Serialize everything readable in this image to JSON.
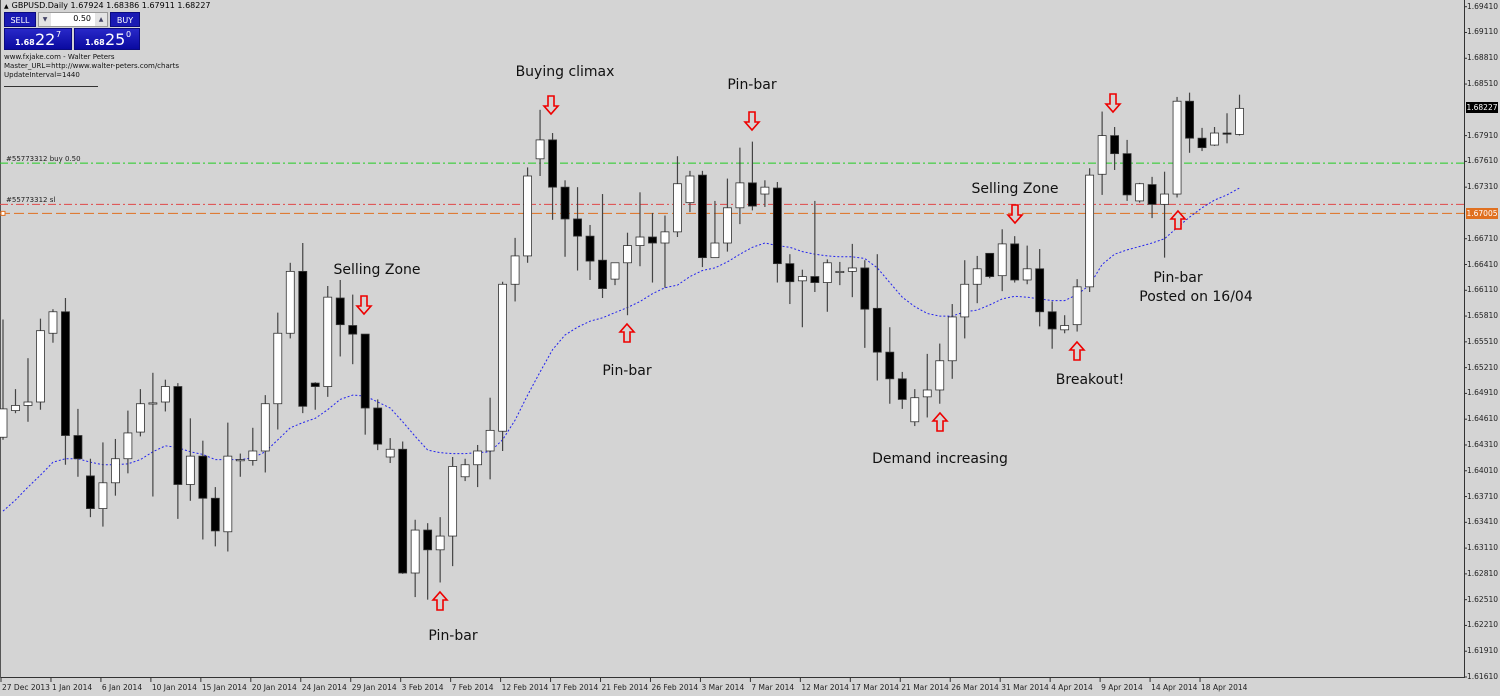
{
  "header": {
    "symbol_line": "GBPUSD.Daily  1.67924 1.68386 1.67911 1.68227"
  },
  "trade_panel": {
    "sell_label": "SELL",
    "buy_label": "BUY",
    "lot_value": "0.50",
    "sell_price": {
      "small": "1.68",
      "big": "22",
      "pip": "7"
    },
    "buy_price": {
      "small": "1.68",
      "big": "25",
      "pip": "0"
    }
  },
  "info_lines": [
    "www.fxjake.com - Walter Peters",
    "Master_URL=http://www.walter-peters.com/charts",
    "UpdateInterval=1440"
  ],
  "levels": {
    "buy_label": "#55773312 buy 0.50",
    "sl_label": "#55773312 sl",
    "current_price_tag": "1.68227",
    "orange_tag": "1.67005"
  },
  "colors": {
    "background": "#d4d4d4",
    "bull_body": "#ffffff",
    "bear_body": "#000000",
    "ma_line": "#2222ee",
    "buy_line": "#22cc22",
    "sl_line": "#e04848",
    "orange_line": "#e07020",
    "annotation_arrow": "#ee0000"
  },
  "annotations": {
    "buying_climax": "Buying climax",
    "pinbar_top": "Pin-bar",
    "selling_zone_1": "Selling Zone",
    "pinbar_mid": "Pin-bar",
    "pinbar_low": "Pin-bar",
    "demand_increasing": "Demand increasing",
    "selling_zone_2": "Selling Zone",
    "breakout": "Breakout!",
    "pinbar_last": "Pin-bar",
    "posted": "Posted on 16/04"
  },
  "chart_data": {
    "type": "candlestick",
    "symbol": "GBPUSD",
    "timeframe": "Daily",
    "ohlc_order": [
      "open",
      "high",
      "low",
      "close"
    ],
    "ylim": [
      1.6161,
      1.6941
    ],
    "y_ticks": [
      "1.69410",
      "1.69110",
      "1.68810",
      "1.68510",
      "1.68227",
      "1.67910",
      "1.67610",
      "1.67310",
      "1.67005",
      "1.66710",
      "1.66410",
      "1.66110",
      "1.65810",
      "1.65510",
      "1.65210",
      "1.64910",
      "1.64610",
      "1.64310",
      "1.64010",
      "1.63710",
      "1.63410",
      "1.63110",
      "1.62810",
      "1.62510",
      "1.62210",
      "1.61910",
      "1.61610"
    ],
    "x_labels": [
      "27 Dec 2013",
      "1 Jan 2014",
      "6 Jan 2014",
      "10 Jan 2014",
      "15 Jan 2014",
      "20 Jan 2014",
      "24 Jan 2014",
      "29 Jan 2014",
      "3 Feb 2014",
      "7 Feb 2014",
      "12 Feb 2014",
      "17 Feb 2014",
      "21 Feb 2014",
      "26 Feb 2014",
      "3 Mar 2014",
      "7 Mar 2014",
      "12 Mar 2014",
      "17 Mar 2014",
      "21 Mar 2014",
      "26 Mar 2014",
      "31 Mar 2014",
      "4 Apr 2014",
      "9 Apr 2014",
      "14 Apr 2014",
      "18 Apr 2014"
    ],
    "bars_per_label": 4,
    "horizontal_levels": {
      "buy": 1.6759,
      "sl": 1.6711,
      "orange": 1.67005,
      "bid": 1.68227
    },
    "candles": [
      [
        1.644,
        1.6577,
        1.6437,
        1.6473
      ],
      [
        1.6471,
        1.6496,
        1.6468,
        1.6477
      ],
      [
        1.6477,
        1.6532,
        1.6458,
        1.6481
      ],
      [
        1.6481,
        1.6578,
        1.6472,
        1.6564
      ],
      [
        1.6561,
        1.6589,
        1.655,
        1.6586
      ],
      [
        1.6586,
        1.6602,
        1.6408,
        1.6442
      ],
      [
        1.6442,
        1.6473,
        1.6394,
        1.6415
      ],
      [
        1.6395,
        1.6415,
        1.6347,
        1.6357
      ],
      [
        1.6357,
        1.6434,
        1.6336,
        1.6387
      ],
      [
        1.6387,
        1.6438,
        1.6372,
        1.6415
      ],
      [
        1.6415,
        1.6471,
        1.6398,
        1.6445
      ],
      [
        1.6446,
        1.6496,
        1.6441,
        1.6479
      ],
      [
        1.6479,
        1.6515,
        1.6371,
        1.648
      ],
      [
        1.6481,
        1.6507,
        1.647,
        1.6499
      ],
      [
        1.6499,
        1.6503,
        1.6345,
        1.6385
      ],
      [
        1.6385,
        1.6462,
        1.6366,
        1.6418
      ],
      [
        1.6418,
        1.6436,
        1.6321,
        1.6369
      ],
      [
        1.6369,
        1.6382,
        1.6313,
        1.6331
      ],
      [
        1.633,
        1.6457,
        1.6307,
        1.6418
      ],
      [
        1.6414,
        1.6421,
        1.6394,
        1.6414
      ],
      [
        1.6413,
        1.6451,
        1.6407,
        1.6424
      ],
      [
        1.6424,
        1.6489,
        1.6399,
        1.6479
      ],
      [
        1.6479,
        1.6585,
        1.6449,
        1.6561
      ],
      [
        1.6561,
        1.6643,
        1.6555,
        1.6633
      ],
      [
        1.6633,
        1.6666,
        1.6468,
        1.6476
      ],
      [
        1.6503,
        1.6504,
        1.6472,
        1.6499
      ],
      [
        1.6499,
        1.6616,
        1.6487,
        1.6603
      ],
      [
        1.6602,
        1.6623,
        1.6534,
        1.6571
      ],
      [
        1.657,
        1.6606,
        1.6525,
        1.656
      ],
      [
        1.656,
        1.656,
        1.6443,
        1.6474
      ],
      [
        1.6474,
        1.6484,
        1.6425,
        1.6432
      ],
      [
        1.6417,
        1.6439,
        1.641,
        1.6426
      ],
      [
        1.6426,
        1.6435,
        1.6281,
        1.6282
      ],
      [
        1.6282,
        1.6344,
        1.6254,
        1.6332
      ],
      [
        1.6332,
        1.634,
        1.6251,
        1.6309
      ],
      [
        1.6309,
        1.6347,
        1.6271,
        1.6325
      ],
      [
        1.6325,
        1.6417,
        1.629,
        1.6406
      ],
      [
        1.6394,
        1.6415,
        1.6389,
        1.6408
      ],
      [
        1.6408,
        1.6431,
        1.6382,
        1.6424
      ],
      [
        1.6424,
        1.6486,
        1.6391,
        1.6448
      ],
      [
        1.6447,
        1.6621,
        1.6424,
        1.6618
      ],
      [
        1.6618,
        1.6672,
        1.6598,
        1.6651
      ],
      [
        1.6651,
        1.6754,
        1.6643,
        1.6744
      ],
      [
        1.6764,
        1.6821,
        1.6744,
        1.6786
      ],
      [
        1.6786,
        1.6794,
        1.6693,
        1.6731
      ],
      [
        1.6731,
        1.6739,
        1.665,
        1.6694
      ],
      [
        1.6694,
        1.6731,
        1.6634,
        1.6674
      ],
      [
        1.6674,
        1.6687,
        1.6623,
        1.6645
      ],
      [
        1.6646,
        1.6723,
        1.6602,
        1.6613
      ],
      [
        1.6624,
        1.6643,
        1.6617,
        1.6643
      ],
      [
        1.6643,
        1.6678,
        1.6582,
        1.6663
      ],
      [
        1.6663,
        1.6725,
        1.6639,
        1.6673
      ],
      [
        1.6673,
        1.6701,
        1.662,
        1.6666
      ],
      [
        1.6666,
        1.6698,
        1.6614,
        1.6679
      ],
      [
        1.6679,
        1.6767,
        1.6673,
        1.6735
      ],
      [
        1.6713,
        1.675,
        1.6702,
        1.6744
      ],
      [
        1.6745,
        1.675,
        1.6638,
        1.6649
      ],
      [
        1.6649,
        1.6715,
        1.6649,
        1.6666
      ],
      [
        1.6666,
        1.6741,
        1.6656,
        1.6707
      ],
      [
        1.6707,
        1.6777,
        1.6688,
        1.6736
      ],
      [
        1.6736,
        1.6784,
        1.6704,
        1.6709
      ],
      [
        1.6723,
        1.6739,
        1.6708,
        1.6731
      ],
      [
        1.673,
        1.6737,
        1.662,
        1.6642
      ],
      [
        1.6642,
        1.6653,
        1.6595,
        1.6621
      ],
      [
        1.6622,
        1.6635,
        1.6568,
        1.6627
      ],
      [
        1.6627,
        1.6715,
        1.6609,
        1.662
      ],
      [
        1.662,
        1.6647,
        1.6586,
        1.6643
      ],
      [
        1.6633,
        1.6644,
        1.6617,
        1.6633
      ],
      [
        1.6633,
        1.6665,
        1.6603,
        1.6637
      ],
      [
        1.6637,
        1.6646,
        1.6544,
        1.6589
      ],
      [
        1.659,
        1.6653,
        1.6506,
        1.6539
      ],
      [
        1.6539,
        1.6568,
        1.6479,
        1.6508
      ],
      [
        1.6508,
        1.6516,
        1.6473,
        1.6484
      ],
      [
        1.6458,
        1.6496,
        1.6453,
        1.6486
      ],
      [
        1.6487,
        1.6537,
        1.6463,
        1.6495
      ],
      [
        1.6495,
        1.6549,
        1.6479,
        1.6529
      ],
      [
        1.6529,
        1.6595,
        1.6508,
        1.658
      ],
      [
        1.658,
        1.6646,
        1.6555,
        1.6618
      ],
      [
        1.6618,
        1.6651,
        1.6596,
        1.6636
      ],
      [
        1.6654,
        1.6654,
        1.6625,
        1.6627
      ],
      [
        1.6628,
        1.6682,
        1.661,
        1.6665
      ],
      [
        1.6665,
        1.6674,
        1.662,
        1.6623
      ],
      [
        1.6623,
        1.6663,
        1.6618,
        1.6636
      ],
      [
        1.6636,
        1.6659,
        1.6569,
        1.6586
      ],
      [
        1.6586,
        1.6598,
        1.6543,
        1.6566
      ],
      [
        1.6565,
        1.6582,
        1.6561,
        1.657
      ],
      [
        1.6571,
        1.6624,
        1.6563,
        1.6615
      ],
      [
        1.6615,
        1.6753,
        1.6609,
        1.6745
      ],
      [
        1.6746,
        1.6819,
        1.6722,
        1.6791
      ],
      [
        1.6791,
        1.6801,
        1.6751,
        1.677
      ],
      [
        1.677,
        1.6786,
        1.6715,
        1.6722
      ],
      [
        1.6715,
        1.6736,
        1.6713,
        1.6735
      ],
      [
        1.6734,
        1.6743,
        1.6695,
        1.6711
      ],
      [
        1.6711,
        1.6749,
        1.6649,
        1.6723
      ],
      [
        1.6723,
        1.6836,
        1.6719,
        1.6831
      ],
      [
        1.6831,
        1.6841,
        1.6771,
        1.6788
      ],
      [
        1.6788,
        1.68,
        1.6773,
        1.6777
      ],
      [
        1.678,
        1.6801,
        1.6779,
        1.6794
      ],
      [
        1.6794,
        1.6817,
        1.6782,
        1.6793
      ],
      [
        1.67924,
        1.68386,
        1.67911,
        1.68227
      ]
    ],
    "moving_average": [
      1.6354,
      1.6367,
      1.6382,
      1.6396,
      1.6411,
      1.6415,
      1.6415,
      1.6411,
      1.6408,
      1.6408,
      1.6409,
      1.6414,
      1.6423,
      1.643,
      1.6428,
      1.6423,
      1.642,
      1.6414,
      1.6414,
      1.6414,
      1.6416,
      1.6423,
      1.6437,
      1.6451,
      1.6457,
      1.6462,
      1.6472,
      1.6484,
      1.6489,
      1.6488,
      1.6481,
      1.6474,
      1.6458,
      1.6441,
      1.6425,
      1.6422,
      1.6421,
      1.6421,
      1.6422,
      1.6423,
      1.6437,
      1.646,
      1.6489,
      1.6516,
      1.6542,
      1.6559,
      1.6568,
      1.6575,
      1.6579,
      1.6585,
      1.6591,
      1.6598,
      1.6607,
      1.6614,
      1.6617,
      1.6627,
      1.6634,
      1.6637,
      1.6644,
      1.6653,
      1.6661,
      1.6666,
      1.6663,
      1.6661,
      1.6656,
      1.6653,
      1.6651,
      1.665,
      1.665,
      1.6648,
      1.6637,
      1.662,
      1.6603,
      1.6592,
      1.6584,
      1.6581,
      1.6581,
      1.6586,
      1.6588,
      1.6594,
      1.6601,
      1.6604,
      1.6603,
      1.6601,
      1.6599,
      1.6599,
      1.6606,
      1.6617,
      1.6641,
      1.6653,
      1.6658,
      1.6662,
      1.6666,
      1.6671,
      1.6684,
      1.6696,
      1.6707,
      1.6716,
      1.6722,
      1.673
    ]
  }
}
